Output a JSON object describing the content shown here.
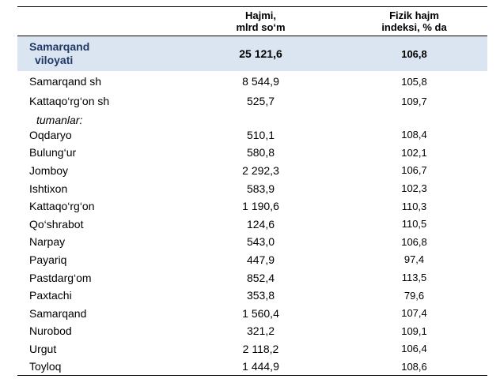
{
  "table": {
    "headers": {
      "col1": "",
      "col2_line1": "Hajmi,",
      "col2_line2": "mlrd so‘m",
      "col3_line1": "Fizik hajm",
      "col3_line2": "indeksi, % da"
    },
    "total": {
      "name_line1": "Samarqand",
      "name_line2": "viloyati",
      "volume": "25 121,6",
      "index": "106,8"
    },
    "cities": [
      {
        "name": "Samarqand sh",
        "volume": "8 544,9",
        "index": "105,8"
      },
      {
        "name": "Kattaqo‘rg‘on sh",
        "volume": "525,7",
        "index": "109,7"
      }
    ],
    "districts_label": "tumanlar:",
    "districts": [
      {
        "name": "Oqdaryo",
        "volume": "510,1",
        "index": "108,4"
      },
      {
        "name": "Bulung‘ur",
        "volume": "580,8",
        "index": "102,1"
      },
      {
        "name": "Jomboy",
        "volume": "2 292,3",
        "index": "106,7"
      },
      {
        "name": "Ishtixon",
        "volume": "583,9",
        "index": "102,3"
      },
      {
        "name": "Kattaqo‘rg‘on",
        "volume": "1 190,6",
        "index": "110,3"
      },
      {
        "name": "Qo‘shrabot",
        "volume": "124,6",
        "index": "110,5"
      },
      {
        "name": "Narpay",
        "volume": "543,0",
        "index": "106,8"
      },
      {
        "name": "Payariq",
        "volume": "447,9",
        "index": "97,4"
      },
      {
        "name": "Pastdarg‘om",
        "volume": "852,4",
        "index": "113,5"
      },
      {
        "name": "Paxtachi",
        "volume": "353,8",
        "index": "79,6"
      },
      {
        "name": "Samarqand",
        "volume": "1 560,4",
        "index": "107,4"
      },
      {
        "name": "Nurobod",
        "volume": "321,2",
        "index": "109,1"
      },
      {
        "name": "Urgut",
        "volume": "2 118,2",
        "index": "106,4"
      },
      {
        "name": "Toyloq",
        "volume": "1 444,9",
        "index": "108,6"
      }
    ]
  },
  "colors": {
    "total_row_bg": "#dbe5f1",
    "region_name": "#1f3864"
  }
}
